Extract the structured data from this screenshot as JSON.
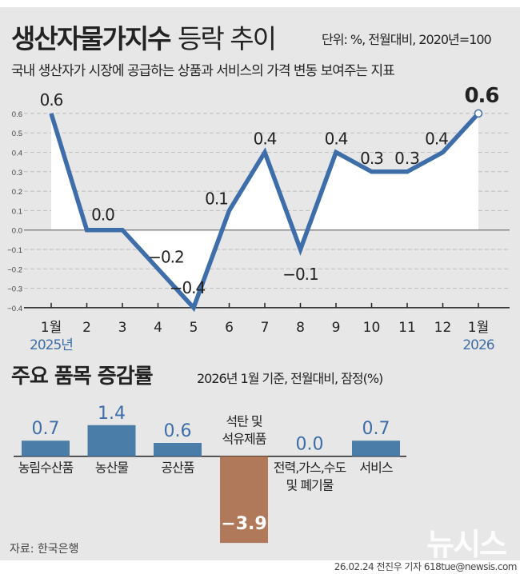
{
  "header": {
    "title_bold": "생산자물가지수",
    "title_light": "등락 추이",
    "unit": "단위: %, 전월대비, 2020년=100",
    "subtitle": "국내 생산자가 시장에 공급하는 상품과 서비스의 가격 변동 보여주는 지표"
  },
  "section2": {
    "title": "주요 품목 증감률",
    "unit": "2026년 1월 기준, 전월대비, 잠정(%)"
  },
  "footer": {
    "source": "자료: 한국은행",
    "credit": "26.02.24 전진우 기자 618tue@newsis.com",
    "logo": "뉴시스"
  },
  "colors": {
    "line": "#3d6ea9",
    "bar_positive": "#4a7ea8",
    "bar_negative": "#b07a5a",
    "background": "#e7e7e7",
    "value_label": "#3d6ea9"
  },
  "chart_data": [
    {
      "type": "line",
      "categories": [
        "1월",
        "2",
        "3",
        "4",
        "5",
        "6",
        "7",
        "8",
        "9",
        "10",
        "11",
        "12",
        "1월"
      ],
      "year_labels": [
        "2025년",
        "2026"
      ],
      "values": [
        0.6,
        0.0,
        0.0,
        -0.2,
        -0.4,
        0.1,
        0.4,
        -0.1,
        0.4,
        0.3,
        0.3,
        0.4,
        0.6
      ],
      "data_labels": [
        "0.6",
        "0.0",
        "",
        "−0.2",
        "−0.4",
        "0.1",
        "0.4",
        "−0.1",
        "0.4",
        "0.3",
        "",
        "0.4",
        "0.6"
      ],
      "yticks": [
        "0.6",
        "0.5",
        "0.4",
        "0.3",
        "0.2",
        "0.1",
        "0.0",
        "-0.1",
        "-0.2",
        "-0.3",
        "-0.4"
      ],
      "ylim": [
        -0.4,
        0.6
      ],
      "grid": true
    },
    {
      "type": "bar",
      "categories": [
        [
          "농림수산품"
        ],
        [
          "농산물"
        ],
        [
          "공산품"
        ],
        [
          "석탄 및",
          "석유제품"
        ],
        [
          "전력,가스,수도",
          "및 폐기물"
        ],
        [
          "서비스"
        ]
      ],
      "values": [
        0.7,
        1.4,
        0.6,
        -3.9,
        0.0,
        0.7
      ],
      "data_labels": [
        "0.7",
        "1.4",
        "0.6",
        "−3.9",
        "0.0",
        "0.7"
      ]
    }
  ]
}
